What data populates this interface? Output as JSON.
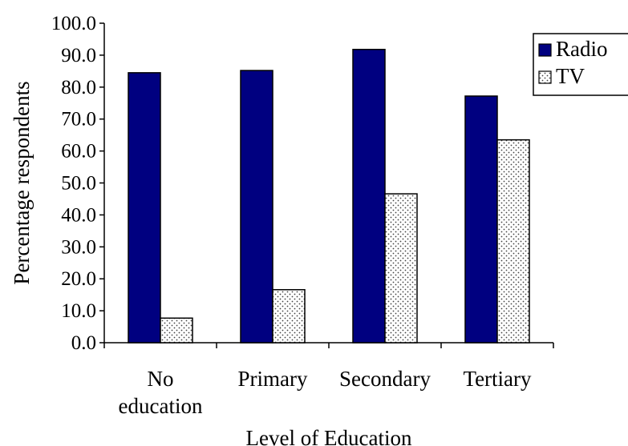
{
  "chart_data": {
    "type": "bar",
    "categories": [
      [
        "No",
        "education"
      ],
      [
        "Primary"
      ],
      [
        "Secondary"
      ],
      [
        "Tertiary"
      ]
    ],
    "series": [
      {
        "name": "Radio",
        "values": [
          84.5,
          85.2,
          91.8,
          77.2
        ],
        "color": "#000080",
        "pattern": "solid"
      },
      {
        "name": "TV",
        "values": [
          7.7,
          16.6,
          46.6,
          63.5
        ],
        "color": "#ffffff",
        "pattern": "dotted"
      }
    ],
    "xlabel": "Level of Education",
    "ylabel": "Percentage respondents",
    "ylim": [
      0,
      100
    ],
    "yticks": [
      "0.0",
      "10.0",
      "20.0",
      "30.0",
      "40.0",
      "50.0",
      "60.0",
      "70.0",
      "80.0",
      "90.0",
      "100.0"
    ],
    "grid": false,
    "legend_position": "top-right"
  }
}
